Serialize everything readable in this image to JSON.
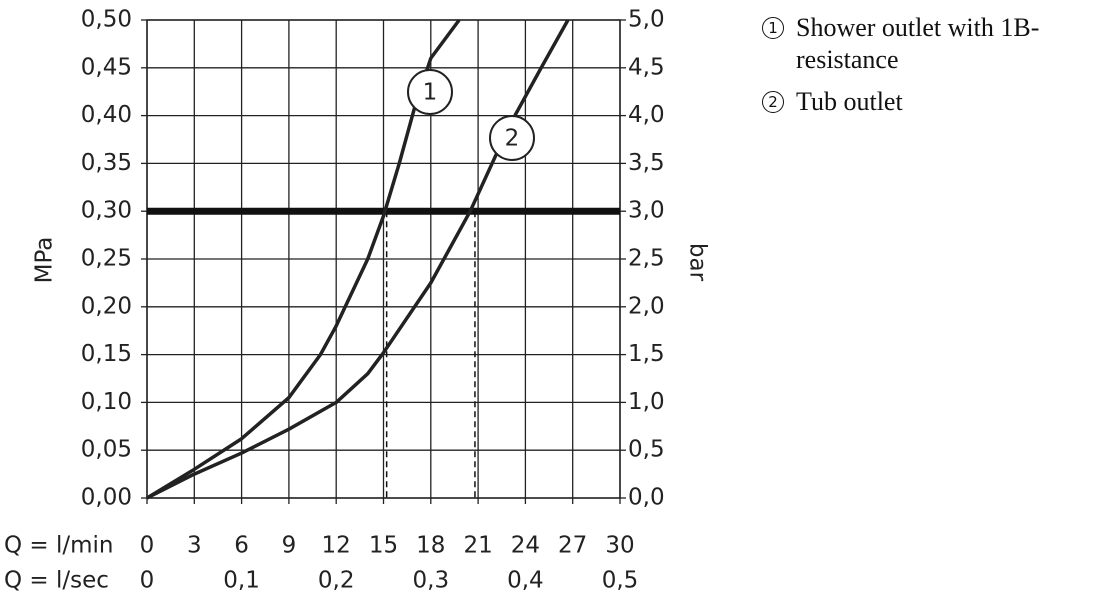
{
  "chart_data": {
    "type": "line",
    "y_label": "MPa",
    "y2_label": "bar",
    "x_label": "Q = l/min",
    "x2_label": "Q = l/sec",
    "xlim": [
      0,
      30
    ],
    "xticks": [
      0,
      3,
      6,
      9,
      12,
      15,
      18,
      21,
      24,
      27,
      30
    ],
    "x2lim": [
      0,
      0.5
    ],
    "x2ticks": [
      {
        "value": 0,
        "label": "0"
      },
      {
        "value": 0.1,
        "label": "0,1"
      },
      {
        "value": 0.2,
        "label": "0,2"
      },
      {
        "value": 0.3,
        "label": "0,3"
      },
      {
        "value": 0.4,
        "label": "0,4"
      },
      {
        "value": 0.5,
        "label": "0,5"
      }
    ],
    "ylim": [
      0,
      0.5
    ],
    "yticks": [
      {
        "value": 0,
        "label": "0,00"
      },
      {
        "value": 0.05,
        "label": "0,05"
      },
      {
        "value": 0.1,
        "label": "0,10"
      },
      {
        "value": 0.15,
        "label": "0,15"
      },
      {
        "value": 0.2,
        "label": "0,20"
      },
      {
        "value": 0.25,
        "label": "0,25"
      },
      {
        "value": 0.3,
        "label": "0,30"
      },
      {
        "value": 0.35,
        "label": "0,35"
      },
      {
        "value": 0.4,
        "label": "0,40"
      },
      {
        "value": 0.45,
        "label": "0,45"
      },
      {
        "value": 0.5,
        "label": "0,50"
      }
    ],
    "y2lim": [
      0,
      5
    ],
    "y2ticks": [
      {
        "value": 0,
        "label": "0,0"
      },
      {
        "value": 0.5,
        "label": "0,5"
      },
      {
        "value": 1,
        "label": "1,0"
      },
      {
        "value": 1.5,
        "label": "1,5"
      },
      {
        "value": 2,
        "label": "2,0"
      },
      {
        "value": 2.5,
        "label": "2,5"
      },
      {
        "value": 3,
        "label": "3,0"
      },
      {
        "value": 3.5,
        "label": "3,5"
      },
      {
        "value": 4,
        "label": "4,0"
      },
      {
        "value": 4.5,
        "label": "4,5"
      },
      {
        "value": 5,
        "label": "5,0"
      }
    ],
    "grid": true,
    "reference_y": 0.3,
    "dashed_x": [
      15.2,
      20.8
    ],
    "series": [
      {
        "name": "Shower outlet with 1B-resistance",
        "marker_label": "1",
        "color": "#222222",
        "x": [
          0,
          3,
          6,
          9,
          11,
          12,
          14,
          15,
          16,
          17,
          18,
          19.8
        ],
        "values": [
          0,
          0.03,
          0.062,
          0.105,
          0.15,
          0.18,
          0.25,
          0.295,
          0.35,
          0.41,
          0.46,
          0.5
        ]
      },
      {
        "name": "Tub outlet",
        "marker_label": "2",
        "color": "#222222",
        "x": [
          0,
          3,
          6,
          9,
          12,
          14,
          15,
          18,
          20.5,
          23,
          25,
          26.7
        ],
        "values": [
          0,
          0.025,
          0.047,
          0.072,
          0.1,
          0.13,
          0.152,
          0.225,
          0.3,
          0.39,
          0.45,
          0.5
        ]
      }
    ]
  }
}
